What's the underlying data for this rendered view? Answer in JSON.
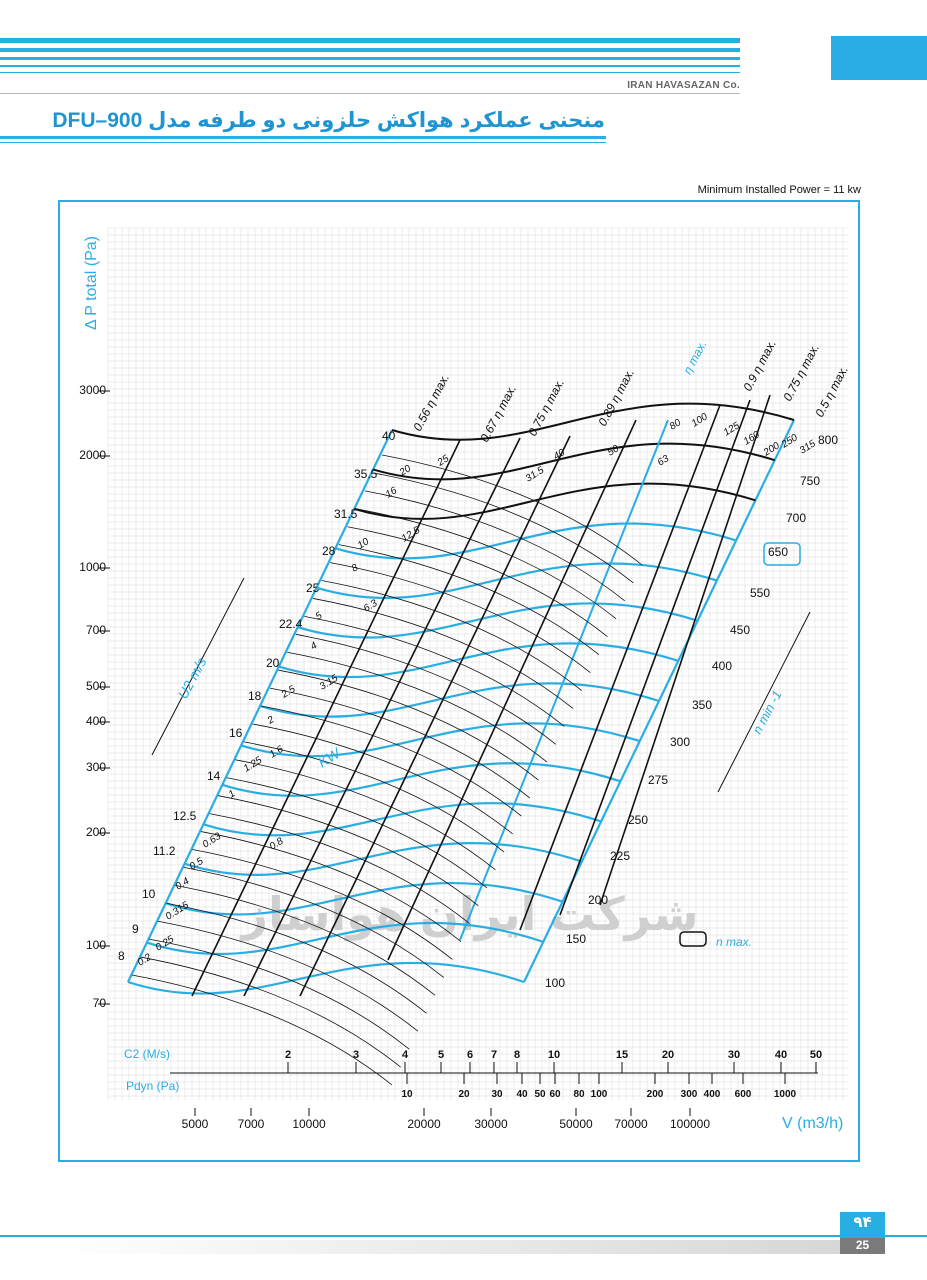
{
  "header": {
    "company": "IRAN HAVASAZAN Co.",
    "title": "منحنی عملکرد هواکش حلزونی دو طرفه مدل DFU–900",
    "min_power": "Minimum Installed Power = 11 kw"
  },
  "footer": {
    "page_fa": "۹۴",
    "page_en": "25"
  },
  "colors": {
    "accent": "#29aee4",
    "ink": "#111111",
    "grid": "#d9d9d9"
  },
  "chart_data": {
    "type": "line",
    "ylabel": "Δ P total (Pa)",
    "xlabel": "V (m3/h)",
    "y_ticks": [
      "3000",
      "2000",
      "1000",
      "700",
      "500",
      "400",
      "300",
      "200",
      "100",
      "70"
    ],
    "u2_label": "U2 m/s",
    "u2_ticks": [
      "40",
      "35.5",
      "31.5",
      "28",
      "25",
      "22.4",
      "20",
      "18",
      "16",
      "14",
      "12.5",
      "11.2",
      "10",
      "9",
      "8"
    ],
    "kw_label": "KW",
    "kw_values": [
      "20",
      "16",
      "12.5",
      "10",
      "8",
      "6.3",
      "5",
      "4",
      "3.15",
      "2.5",
      "2",
      "1.6",
      "1.25",
      "1",
      "0.8",
      "0.63",
      "0.5",
      "0.4",
      "0.315",
      "0.25",
      "0.2",
      "25",
      "31.5",
      "40",
      "50",
      "63",
      "80",
      "100",
      "125",
      "160",
      "200",
      "250",
      "315"
    ],
    "eta_lines": [
      "0.56 η max.",
      "0.67 η max.",
      "0.75 η max.",
      "0.89 η max.",
      "η max.",
      "0.9 η max.",
      "0.75 η max.",
      "0.5 η max."
    ],
    "n_label": "n min -1",
    "n_values": [
      "800",
      "750",
      "700",
      "650",
      "550",
      "450",
      "400",
      "350",
      "300",
      "275",
      "250",
      "225",
      "200",
      "150",
      "100"
    ],
    "n_max_value": "650",
    "legend_label": "n max.",
    "c2_label": "C2 (M/s)",
    "c2_ticks": [
      "2",
      "3",
      "4",
      "5",
      "6",
      "7",
      "8",
      "10",
      "15",
      "20",
      "30",
      "40",
      "50"
    ],
    "pdyn_label": "Pdyn (Pa)",
    "pdyn_ticks": [
      "10",
      "20",
      "30",
      "40",
      "50",
      "60",
      "80",
      "100",
      "200",
      "300",
      "400",
      "600",
      "1000"
    ],
    "v_ticks": [
      "5000",
      "7000",
      "10000",
      "20000",
      "30000",
      "50000",
      "70000",
      "100000"
    ],
    "watermark": "شرکت ایران هواساز"
  }
}
